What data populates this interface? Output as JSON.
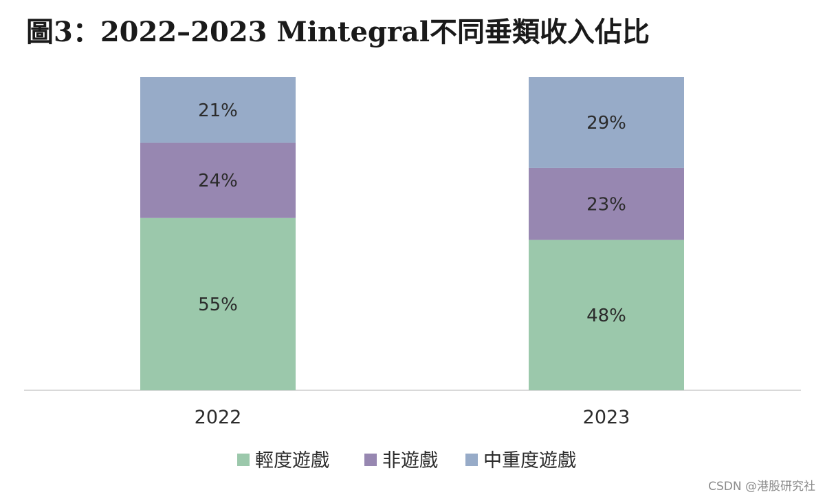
{
  "title": "圖3：2022–2023 Mintegral不同垂類收入佔比",
  "watermark": "CSDN @港股研究社",
  "colors": {
    "light_games": "#9bc8ab",
    "non_games": "#9787b1",
    "midcore_games": "#97abc8",
    "axis": "#d9d9d9",
    "text": "#2b2b2b"
  },
  "chart_data": {
    "type": "bar",
    "stacked": true,
    "categories": [
      "2022",
      "2023"
    ],
    "series": [
      {
        "name": "輕度遊戲",
        "values": [
          55,
          48
        ],
        "labels": [
          "55%",
          "48%"
        ]
      },
      {
        "name": "非遊戲",
        "values": [
          24,
          23
        ],
        "labels": [
          "24%",
          "23%"
        ]
      },
      {
        "name": "中重度遊戲",
        "values": [
          21,
          29
        ],
        "labels": [
          "21%",
          "29%"
        ]
      }
    ],
    "ylim": [
      0,
      100
    ],
    "grid": false,
    "legend_position": "bottom-center"
  }
}
